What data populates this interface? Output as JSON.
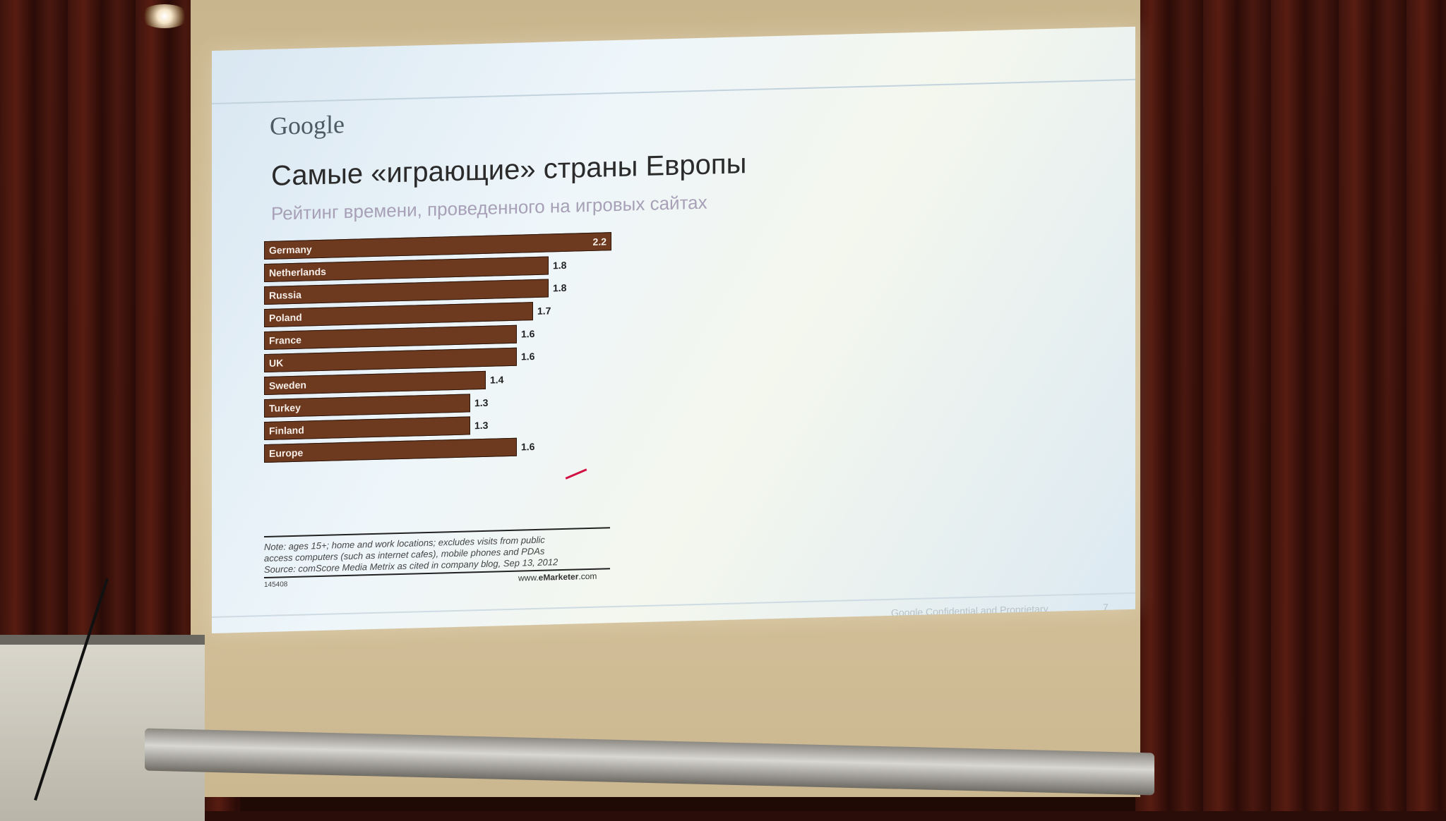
{
  "slide": {
    "logo": "Google",
    "title": "Самые «играющие» страны Европы",
    "subtitle": "Рейтинг времени, проведенного на игровых сайтах",
    "note_lines": [
      "Note: ages 15+; home and work locations; excludes visits from public",
      "access computers (such as internet cafes), mobile phones and PDAs",
      "Source: comScore Media Metrix as cited in company blog, Sep 13, 2012"
    ],
    "chart_id": "145408",
    "source_prefix": "www.",
    "source_brand": "eMarketer",
    "source_suffix": ".com",
    "footer_text": "Google Confidential and Proprietary",
    "page_number": "7"
  },
  "chart_data": {
    "type": "bar",
    "orientation": "horizontal",
    "categories": [
      "Germany",
      "Netherlands",
      "Russia",
      "Poland",
      "France",
      "UK",
      "Sweden",
      "Turkey",
      "Finland",
      "Europe"
    ],
    "values": [
      2.2,
      1.8,
      1.8,
      1.7,
      1.6,
      1.6,
      1.4,
      1.3,
      1.3,
      1.6
    ],
    "value_labels": [
      "2.2",
      "1.8",
      "1.8",
      "1.7",
      "1.6",
      "1.6",
      "1.4",
      "1.3",
      "1.3",
      "1.6"
    ],
    "bar_color": "#6e3a1f",
    "xlim": [
      0,
      2.2
    ]
  }
}
